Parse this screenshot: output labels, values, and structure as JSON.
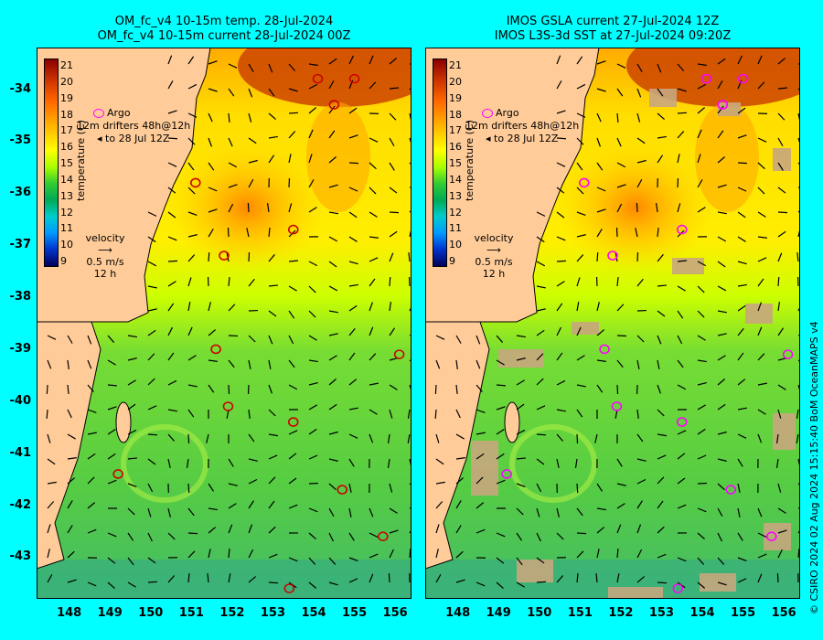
{
  "left_panel": {
    "title_line1": "OM_fc_v4  10-15m temp. 28-Jul-2024",
    "title_line2": "OM_fc_v4  10-15m current 28-Jul-2024 00Z"
  },
  "right_panel": {
    "title_line1": "IMOS GSLA current 27-Jul-2024 12Z",
    "title_line2": "IMOS L3S-3d SST at 27-Jul-2024 09:20Z"
  },
  "axes": {
    "lat_ticks": [
      "-34",
      "-35",
      "-36",
      "-37",
      "-38",
      "-39",
      "-40",
      "-41",
      "-42",
      "-43"
    ],
    "lon_ticks": [
      "148",
      "149",
      "150",
      "151",
      "152",
      "153",
      "154",
      "155",
      "156"
    ]
  },
  "colorbar": {
    "title": "temperature (C)",
    "ticks": [
      "21",
      "20",
      "19",
      "18",
      "17",
      "16",
      "15",
      "14",
      "13",
      "12",
      "11",
      "10",
      "9"
    ]
  },
  "legend": {
    "argo": "Argo",
    "drifters_line1": "drifters 48h@12h",
    "drifters_line2": "to 28 Jul 12Z",
    "drifters_prefix": "12m"
  },
  "velocity_key": {
    "label": "velocity",
    "speed": "0.5 m/s",
    "duration": "12 h"
  },
  "credit": "© CSIRO 2024   02 Aug 2024 15:15:40 BoM OceanMAPS v4",
  "colors": {
    "background": "#00ffff",
    "land": "#ffcc99",
    "argo": "#ff00ff",
    "argo_left": "#cc0000",
    "cloud_mask": "#c8a67e"
  },
  "argo_floats_lonlat": [
    [
      154.1,
      -33.8
    ],
    [
      155.0,
      -33.8
    ],
    [
      154.5,
      -34.3
    ],
    [
      151.1,
      -35.8
    ],
    [
      151.8,
      -37.2
    ],
    [
      153.5,
      -36.7
    ],
    [
      151.6,
      -39.0
    ],
    [
      156.1,
      -39.1
    ],
    [
      151.9,
      -40.1
    ],
    [
      153.5,
      -40.4
    ],
    [
      149.2,
      -41.4
    ],
    [
      154.7,
      -41.7
    ],
    [
      155.7,
      -42.6
    ],
    [
      153.4,
      -43.6
    ]
  ]
}
